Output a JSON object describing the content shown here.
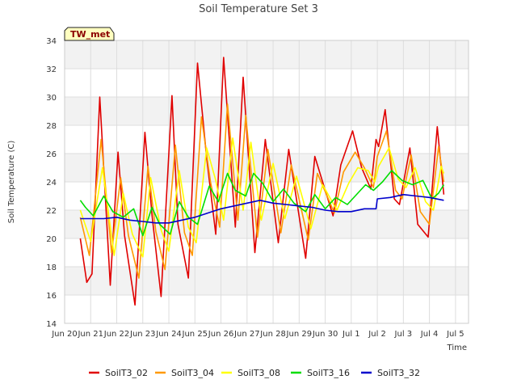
{
  "chart_data": {
    "type": "line",
    "title": "Soil Temperature Set 3",
    "xlabel": "Time",
    "ylabel": "Soil Temperature (C)",
    "ylim": [
      14,
      34
    ],
    "xlim": [
      0,
      15.5
    ],
    "yticks": [
      14,
      16,
      18,
      20,
      22,
      24,
      26,
      28,
      30,
      32,
      34
    ],
    "xticks": [
      {
        "x": 0,
        "label": "Jun 20"
      },
      {
        "x": 1,
        "label": "Jun 21"
      },
      {
        "x": 2,
        "label": "Jun 22"
      },
      {
        "x": 3,
        "label": "Jun 23"
      },
      {
        "x": 4,
        "label": "Jun 24"
      },
      {
        "x": 5,
        "label": "Jun 25"
      },
      {
        "x": 6,
        "label": "Jun 26"
      },
      {
        "x": 7,
        "label": "Jun 27"
      },
      {
        "x": 8,
        "label": "Jun 28"
      },
      {
        "x": 9,
        "label": "Jun 29"
      },
      {
        "x": 10,
        "label": "Jun 30"
      },
      {
        "x": 11,
        "label": "Jul 1"
      },
      {
        "x": 12,
        "label": "Jul 2"
      },
      {
        "x": 13,
        "label": "Jul 3"
      },
      {
        "x": 14,
        "label": "Jul 4"
      },
      {
        "x": 15,
        "label": "Jul 5"
      }
    ],
    "grid": true,
    "legend_position": "bottom",
    "badge": "TW_met",
    "series": [
      {
        "name": "SoilT3_02",
        "color": "#e00000",
        "x": [
          0.6,
          0.85,
          1.05,
          1.35,
          1.75,
          2.05,
          2.3,
          2.7,
          3.08,
          3.35,
          3.7,
          4.12,
          4.35,
          4.75,
          5.1,
          5.45,
          5.8,
          6.1,
          6.55,
          6.85,
          7.3,
          7.7,
          8.2,
          8.6,
          9.25,
          9.6,
          10.3,
          10.6,
          11.05,
          11.4,
          11.75,
          11.95,
          12.05,
          12.3,
          12.65,
          12.85,
          13.25,
          13.55,
          13.95,
          14.3,
          14.55
        ],
        "y": [
          20.0,
          16.9,
          17.5,
          30.0,
          16.7,
          26.1,
          20.2,
          15.3,
          27.5,
          21.7,
          15.9,
          30.1,
          21.0,
          17.2,
          32.4,
          25.7,
          20.3,
          32.8,
          20.8,
          31.4,
          19.0,
          27.0,
          19.7,
          26.3,
          18.6,
          25.8,
          21.6,
          25.2,
          27.6,
          25.0,
          23.5,
          27.0,
          26.5,
          29.1,
          22.8,
          22.4,
          26.4,
          21.0,
          20.1,
          27.9,
          23.1
        ]
      },
      {
        "name": "SoilT3_04",
        "color": "#ff9900",
        "x": [
          0.6,
          0.95,
          1.4,
          1.8,
          2.15,
          2.45,
          2.85,
          3.2,
          3.5,
          3.85,
          4.25,
          4.6,
          4.9,
          5.25,
          5.6,
          5.95,
          6.25,
          6.65,
          6.95,
          7.4,
          7.8,
          8.3,
          8.7,
          9.35,
          9.7,
          10.35,
          10.7,
          11.15,
          11.5,
          11.85,
          12.0,
          12.35,
          12.7,
          12.95,
          13.3,
          13.65,
          14.0,
          14.35,
          14.55
        ],
        "y": [
          21.5,
          18.8,
          27.0,
          19.0,
          24.3,
          20.2,
          17.2,
          25.1,
          20.5,
          17.8,
          26.6,
          20.4,
          18.8,
          28.6,
          24.0,
          20.8,
          29.5,
          21.3,
          28.7,
          20.1,
          26.3,
          20.4,
          25.2,
          19.9,
          24.6,
          21.8,
          24.7,
          26.1,
          25.0,
          23.6,
          25.8,
          27.6,
          23.4,
          22.8,
          25.9,
          21.9,
          21.0,
          26.5,
          24.0
        ]
      },
      {
        "name": "SoilT3_08",
        "color": "#ffff00",
        "x": [
          0.6,
          1.0,
          1.45,
          1.9,
          2.25,
          2.6,
          3.0,
          3.3,
          3.7,
          4.0,
          4.4,
          4.75,
          5.05,
          5.45,
          5.8,
          6.1,
          6.45,
          6.85,
          7.15,
          7.55,
          8.0,
          8.45,
          8.9,
          9.45,
          9.9,
          10.45,
          10.9,
          11.25,
          11.65,
          11.9,
          12.05,
          12.45,
          12.8,
          13.1,
          13.45,
          13.85,
          14.15,
          14.45,
          14.55
        ],
        "y": [
          22.0,
          19.8,
          25.0,
          18.8,
          23.2,
          20.3,
          18.7,
          24.3,
          20.6,
          19.1,
          24.8,
          20.8,
          19.7,
          26.4,
          24.1,
          21.3,
          27.1,
          22.0,
          26.8,
          21.3,
          25.3,
          21.4,
          24.4,
          20.7,
          23.8,
          22.0,
          23.9,
          25.0,
          24.8,
          24.0,
          25.1,
          26.4,
          24.2,
          23.6,
          25.0,
          22.6,
          22.0,
          25.1,
          24.6
        ]
      },
      {
        "name": "SoilT3_16",
        "color": "#00dd00",
        "x": [
          0.6,
          0.8,
          1.1,
          1.5,
          1.85,
          2.25,
          2.65,
          3.0,
          3.35,
          3.65,
          4.05,
          4.4,
          4.75,
          5.1,
          5.55,
          5.9,
          6.25,
          6.55,
          6.95,
          7.25,
          7.6,
          8.0,
          8.4,
          8.8,
          9.25,
          9.6,
          10.0,
          10.4,
          10.85,
          11.25,
          11.55,
          11.85,
          12.2,
          12.55,
          12.95,
          13.35,
          13.75,
          14.1,
          14.35,
          14.55
        ],
        "y": [
          22.7,
          22.2,
          21.6,
          23.0,
          21.9,
          21.5,
          22.1,
          20.2,
          22.2,
          21.0,
          20.3,
          22.6,
          21.5,
          21.0,
          23.7,
          22.6,
          24.6,
          23.4,
          23.0,
          24.6,
          23.9,
          22.6,
          23.5,
          22.5,
          21.9,
          23.1,
          22.1,
          22.9,
          22.4,
          23.2,
          23.8,
          23.4,
          24.0,
          24.8,
          24.1,
          23.8,
          24.1,
          22.8,
          23.2,
          23.8
        ]
      },
      {
        "name": "SoilT3_32",
        "color": "#0000cc",
        "x": [
          0.6,
          1.0,
          1.5,
          2.0,
          2.5,
          3.0,
          3.5,
          4.0,
          4.5,
          5.0,
          5.5,
          6.0,
          6.5,
          7.0,
          7.5,
          8.0,
          8.5,
          9.0,
          9.5,
          10.0,
          10.5,
          11.0,
          11.5,
          11.95,
          12.0,
          12.5,
          13.0,
          13.5,
          14.0,
          14.55
        ],
        "y": [
          21.4,
          21.4,
          21.4,
          21.5,
          21.3,
          21.2,
          21.1,
          21.1,
          21.3,
          21.5,
          21.8,
          22.1,
          22.3,
          22.5,
          22.7,
          22.5,
          22.4,
          22.3,
          22.2,
          22.0,
          21.9,
          21.9,
          22.1,
          22.1,
          22.8,
          22.9,
          23.1,
          23.0,
          22.9,
          22.7
        ]
      }
    ]
  }
}
